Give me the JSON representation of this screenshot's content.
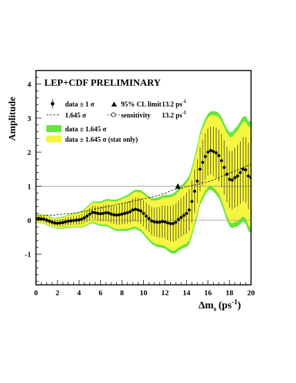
{
  "chart_data": {
    "type": "line",
    "title": "LEP+CDF PRELIMINARY",
    "xlabel": "Δm",
    "xlabel_sub": "s",
    "xlabel_unit": "(ps",
    "xlabel_unit_sup": "-1",
    "xlabel_close": ")",
    "ylabel": "Amplitude",
    "xlim": [
      0,
      20
    ],
    "ylim": [
      -1.9,
      4.4
    ],
    "xticks": [
      0,
      2,
      4,
      6,
      8,
      10,
      12,
      14,
      16,
      18,
      20
    ],
    "yticks": [
      -1,
      0,
      1,
      2,
      3,
      4
    ],
    "reference_lines": [
      0,
      1
    ],
    "colors": {
      "band_total": "#66e63a",
      "band_stat": "#f5f542",
      "data": "#000000",
      "reference": "#999999"
    },
    "legend": {
      "placement": "top-left",
      "data_label": "data ± 1 σ",
      "sigma_label": "1.645 σ",
      "limit_label": "95% CL limit",
      "limit_value": "13.2 ps",
      "limit_unit_sup": "-1",
      "sensitivity_label": "sensitivity",
      "sensitivity_value": "13.2 ps",
      "sensitivity_unit_sup": "-1",
      "band_total_label": "data ± 1.645 σ",
      "band_stat_label": "data ± 1.645 σ (stat only)"
    },
    "limit_marker": {
      "x": 13.2,
      "y": 1.0
    },
    "series": [
      {
        "name": "data ± 1 σ",
        "x": [
          0.0,
          0.25,
          0.5,
          0.75,
          1.0,
          1.25,
          1.5,
          1.75,
          2.0,
          2.25,
          2.5,
          2.75,
          3.0,
          3.25,
          3.5,
          3.75,
          4.0,
          4.25,
          4.5,
          4.75,
          5.0,
          5.25,
          5.5,
          5.75,
          6.0,
          6.25,
          6.5,
          6.75,
          7.0,
          7.25,
          7.5,
          7.75,
          8.0,
          8.25,
          8.5,
          8.75,
          9.0,
          9.25,
          9.5,
          9.75,
          10.0,
          10.25,
          10.5,
          10.75,
          11.0,
          11.25,
          11.5,
          11.75,
          12.0,
          12.25,
          12.5,
          12.75,
          13.0,
          13.25,
          13.5,
          13.75,
          14.0,
          14.25,
          14.5,
          14.75,
          15.0,
          15.25,
          15.5,
          15.75,
          16.0,
          16.25,
          16.5,
          16.75,
          17.0,
          17.25,
          17.5,
          17.75,
          18.0,
          18.25,
          18.5,
          18.75,
          19.0,
          19.25,
          19.5,
          19.75,
          20.0
        ],
        "y": [
          0.05,
          0.05,
          0.04,
          0.03,
          0.0,
          -0.03,
          -0.06,
          -0.08,
          -0.09,
          -0.08,
          -0.07,
          -0.05,
          -0.03,
          -0.02,
          -0.01,
          0.0,
          0.01,
          0.03,
          0.07,
          0.12,
          0.18,
          0.23,
          0.22,
          0.2,
          0.19,
          0.2,
          0.22,
          0.21,
          0.18,
          0.16,
          0.15,
          0.16,
          0.18,
          0.2,
          0.22,
          0.25,
          0.3,
          0.32,
          0.3,
          0.27,
          0.2,
          0.12,
          0.05,
          -0.02,
          -0.05,
          -0.06,
          -0.06,
          -0.04,
          -0.05,
          -0.08,
          -0.1,
          -0.1,
          -0.06,
          0.02,
          0.08,
          0.14,
          0.2,
          0.3,
          0.55,
          0.85,
          1.15,
          1.5,
          1.7,
          1.87,
          2.0,
          2.05,
          2.02,
          1.98,
          1.9,
          1.75,
          1.55,
          1.35,
          1.2,
          1.18,
          1.25,
          1.3,
          1.4,
          1.5,
          1.48,
          1.3,
          1.25
        ],
        "sigma": [
          0.08,
          0.08,
          0.08,
          0.08,
          0.09,
          0.09,
          0.09,
          0.09,
          0.1,
          0.1,
          0.11,
          0.11,
          0.12,
          0.12,
          0.13,
          0.13,
          0.14,
          0.15,
          0.16,
          0.17,
          0.18,
          0.19,
          0.2,
          0.21,
          0.22,
          0.23,
          0.24,
          0.25,
          0.26,
          0.27,
          0.28,
          0.29,
          0.3,
          0.31,
          0.32,
          0.33,
          0.34,
          0.35,
          0.36,
          0.37,
          0.38,
          0.39,
          0.4,
          0.41,
          0.42,
          0.44,
          0.45,
          0.47,
          0.48,
          0.5,
          0.52,
          0.54,
          0.55,
          0.56,
          0.57,
          0.58,
          0.6,
          0.61,
          0.62,
          0.63,
          0.64,
          0.65,
          0.67,
          0.68,
          0.69,
          0.7,
          0.72,
          0.74,
          0.76,
          0.78,
          0.8,
          0.82,
          0.84,
          0.86,
          0.88,
          0.9,
          0.92,
          0.94,
          0.96,
          0.98,
          1.0
        ],
        "stat_fraction": [
          0.85,
          0.85,
          0.85,
          0.85,
          0.85,
          0.85,
          0.85,
          0.85,
          0.86,
          0.86,
          0.86,
          0.86,
          0.87,
          0.87,
          0.87,
          0.87,
          0.88,
          0.88,
          0.88,
          0.88,
          0.88,
          0.88,
          0.88,
          0.88,
          0.88,
          0.88,
          0.88,
          0.88,
          0.89,
          0.89,
          0.89,
          0.89,
          0.89,
          0.89,
          0.89,
          0.89,
          0.89,
          0.89,
          0.89,
          0.89,
          0.9,
          0.9,
          0.9,
          0.9,
          0.9,
          0.9,
          0.9,
          0.9,
          0.9,
          0.9,
          0.9,
          0.9,
          0.9,
          0.9,
          0.9,
          0.9,
          0.9,
          0.9,
          0.9,
          0.9,
          0.9,
          0.9,
          0.9,
          0.9,
          0.9,
          0.9,
          0.9,
          0.9,
          0.9,
          0.9,
          0.9,
          0.9,
          0.9,
          0.9,
          0.9,
          0.9,
          0.9,
          0.9,
          0.9,
          0.9,
          0.9
        ]
      }
    ]
  }
}
